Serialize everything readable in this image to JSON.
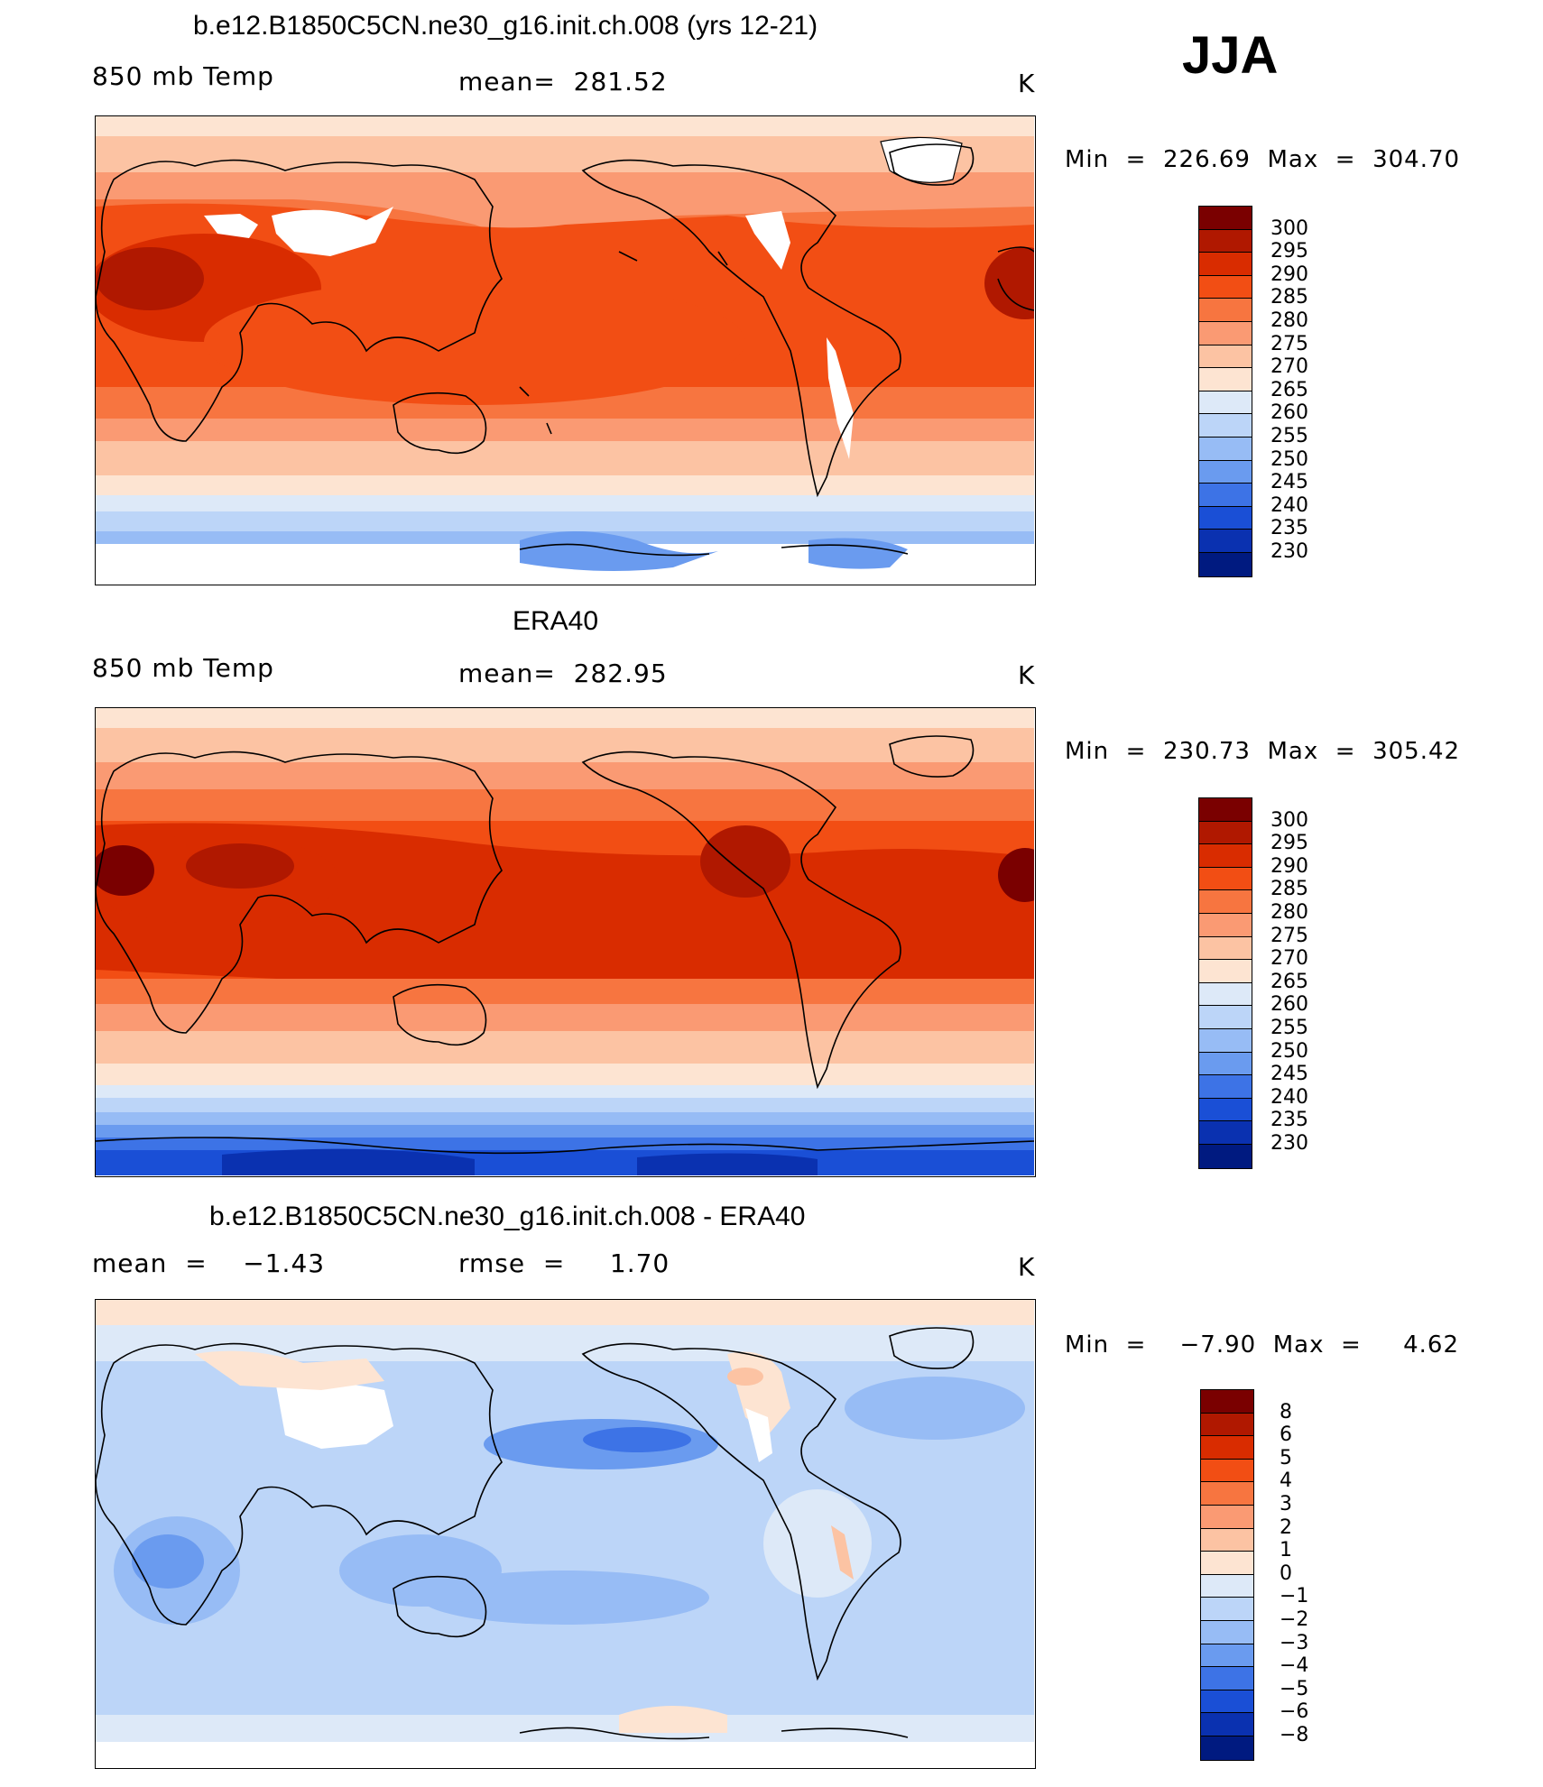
{
  "season": "JJA",
  "panels": [
    {
      "title": "b.e12.B1850C5CN.ne30_g16.init.ch.008 (yrs 12-21)",
      "left_label": "850 mb Temp",
      "center_label": "mean=  281.52",
      "unit": "K",
      "minmax": "Min  =  226.69  Max  =  304.70",
      "colorbar_levels": [
        "300",
        "295",
        "290",
        "285",
        "280",
        "275",
        "270",
        "265",
        "260",
        "255",
        "250",
        "245",
        "240",
        "235",
        "230"
      ]
    },
    {
      "title": "ERA40",
      "left_label": "850 mb Temp",
      "center_label": "mean=  282.95",
      "unit": "K",
      "minmax": "Min  =  230.73  Max  =  305.42",
      "colorbar_levels": [
        "300",
        "295",
        "290",
        "285",
        "280",
        "275",
        "270",
        "265",
        "260",
        "255",
        "250",
        "245",
        "240",
        "235",
        "230"
      ]
    },
    {
      "title": "b.e12.B1850C5CN.ne30_g16.init.ch.008 - ERA40",
      "left_label": "mean  =    −1.43",
      "center_label": "rmse  =     1.70",
      "unit": "K",
      "minmax": "Min  =    −7.90  Max  =     4.62",
      "colorbar_levels": [
        "8",
        "6",
        "5",
        "4",
        "3",
        "2",
        "1",
        "0",
        "−1",
        "−2",
        "−3",
        "−4",
        "−5",
        "−6",
        "−8"
      ]
    }
  ],
  "colors": {
    "temp_scale": [
      "#7a0000",
      "#b01800",
      "#d92c00",
      "#f24e14",
      "#f77540",
      "#fa9a73",
      "#fcc3a3",
      "#fde4d2",
      "#dde9f8",
      "#bcd5f8",
      "#97bcf5",
      "#6a9bef",
      "#3d73e6",
      "#1a4fd6",
      "#0a31b0",
      "#001a80"
    ],
    "diff_scale": [
      "#7a0000",
      "#b01800",
      "#d92c00",
      "#f24e14",
      "#f77540",
      "#fa9a73",
      "#fcc3a3",
      "#fde4d2",
      "#dde9f8",
      "#bcd5f8",
      "#97bcf5",
      "#6a9bef",
      "#3d73e6",
      "#1a4fd6",
      "#0a31b0",
      "#001a80"
    ]
  }
}
